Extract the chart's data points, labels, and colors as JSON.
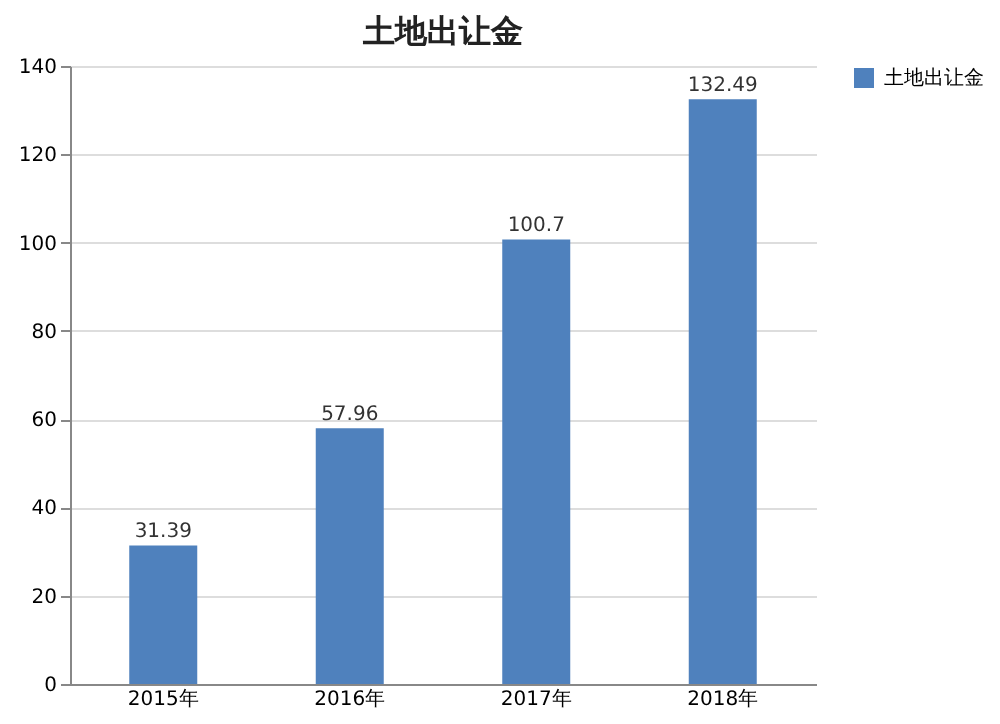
{
  "chart_data": {
    "type": "bar",
    "title": "土地出让金",
    "categories": [
      "2015年",
      "2016年",
      "2017年",
      "2018年"
    ],
    "series": [
      {
        "name": "土地出让金",
        "color": "#4f81bd",
        "values": [
          31.39,
          57.96,
          100.7,
          132.49
        ]
      }
    ],
    "ylim": [
      0,
      140
    ],
    "yticks": [
      0,
      20,
      40,
      60,
      80,
      100,
      120,
      140
    ],
    "grid": "y",
    "legend": "right",
    "data_labels": true
  }
}
